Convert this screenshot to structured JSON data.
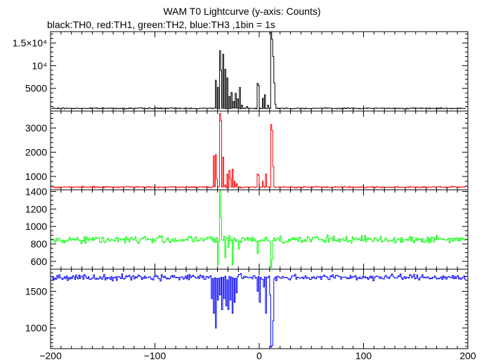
{
  "title": "WAM T0 Lightcurve (y-axis: Counts)",
  "subtitle": "black:TH0, red:TH1, green:TH2, blue:TH3 ,1bin = 1s",
  "chart_data": {
    "type": "line",
    "title": "WAM T0 Lightcurve (y-axis: Counts)",
    "subtitle": "black:TH0, red:TH1, green:TH2, blue:TH3 ,1bin = 1s",
    "xlabel": "",
    "xlim": [
      -200,
      200
    ],
    "x_ticks": [
      -200,
      -100,
      0,
      100,
      200
    ],
    "x_tick_labels": [
      "−200",
      "−100",
      "0",
      "100",
      "200"
    ],
    "bin_seconds": 1,
    "panels": [
      {
        "series": "TH0",
        "color": "#000000",
        "ylim": [
          0,
          17500
        ],
        "y_ticks": [
          5000,
          10000,
          15000
        ],
        "y_tick_labels": [
          "5000",
          "10⁴",
          "1.5×10⁴"
        ],
        "baseline": 600,
        "noise": 80,
        "features": [
          [
            -150,
            700
          ],
          [
            -42,
            6800
          ],
          [
            -40,
            5200
          ],
          [
            -38,
            13300
          ],
          [
            -37,
            9000
          ],
          [
            -35,
            12500
          ],
          [
            -33,
            9200
          ],
          [
            -31,
            7300
          ],
          [
            -29,
            3200
          ],
          [
            -27,
            4100
          ],
          [
            -25,
            2100
          ],
          [
            -23,
            3900
          ],
          [
            -21,
            2700
          ],
          [
            -19,
            5200
          ],
          [
            -17,
            1300
          ],
          [
            -12,
            1000
          ],
          [
            -2,
            6100
          ],
          [
            -1,
            5600
          ],
          [
            3,
            2800
          ],
          [
            5,
            3600
          ],
          [
            8,
            1300
          ],
          [
            11,
            17300
          ],
          [
            12,
            15800
          ],
          [
            13,
            12000
          ],
          [
            14,
            6200
          ],
          [
            15,
            1500
          ]
        ]
      },
      {
        "series": "TH1",
        "color": "#ff0000",
        "ylim": [
          450,
          3700
        ],
        "y_ticks": [
          1000,
          2000,
          3000
        ],
        "y_tick_labels": [
          "1000",
          "2000",
          "3000"
        ],
        "baseline": 560,
        "noise": 20,
        "features": [
          [
            -44,
            1850
          ],
          [
            -42,
            1900
          ],
          [
            -41,
            900
          ],
          [
            -38,
            3600
          ],
          [
            -37,
            3300
          ],
          [
            -35,
            1800
          ],
          [
            -33,
            650
          ],
          [
            -31,
            1100
          ],
          [
            -29,
            1250
          ],
          [
            -28,
            900
          ],
          [
            -26,
            1300
          ],
          [
            -24,
            800
          ],
          [
            -22,
            700
          ],
          [
            -2,
            1100
          ],
          [
            -1,
            1050
          ],
          [
            3,
            800
          ],
          [
            6,
            1100
          ],
          [
            11,
            3150
          ],
          [
            12,
            2900
          ],
          [
            13,
            1400
          ]
        ]
      },
      {
        "series": "TH2",
        "color": "#00ff00",
        "ylim": [
          510,
          1420
        ],
        "y_ticks": [
          600,
          800,
          1000,
          1200,
          1400
        ],
        "y_tick_labels": [
          "600",
          "800",
          "1000",
          "1200",
          "1400"
        ],
        "baseline": 850,
        "noise": 30,
        "features": [
          [
            -40,
            560
          ],
          [
            -38,
            1420
          ],
          [
            -37,
            1100
          ],
          [
            -35,
            840
          ],
          [
            -33,
            640
          ],
          [
            -30,
            760
          ],
          [
            -26,
            560
          ],
          [
            -20,
            740
          ],
          [
            -2,
            690
          ],
          [
            11,
            530
          ],
          [
            12,
            620
          ]
        ]
      },
      {
        "series": "TH3",
        "color": "#0000ff",
        "ylim": [
          720,
          1800
        ],
        "y_ticks": [
          1000,
          1500
        ],
        "y_tick_labels": [
          "1000",
          "1500"
        ],
        "baseline": 1690,
        "noise": 28,
        "features": [
          [
            -46,
            1400
          ],
          [
            -44,
            1200
          ],
          [
            -42,
            1000
          ],
          [
            -40,
            1380
          ],
          [
            -38,
            1450
          ],
          [
            -36,
            1250
          ],
          [
            -34,
            1400
          ],
          [
            -32,
            1300
          ],
          [
            -30,
            1250
          ],
          [
            -28,
            1380
          ],
          [
            -26,
            1200
          ],
          [
            -24,
            1350
          ],
          [
            -22,
            1480
          ],
          [
            -2,
            1500
          ],
          [
            0,
            1350
          ],
          [
            4,
            1560
          ],
          [
            6,
            1200
          ],
          [
            10,
            1450
          ],
          [
            11,
            740
          ],
          [
            12,
            760
          ],
          [
            13,
            1100
          ]
        ]
      }
    ]
  }
}
